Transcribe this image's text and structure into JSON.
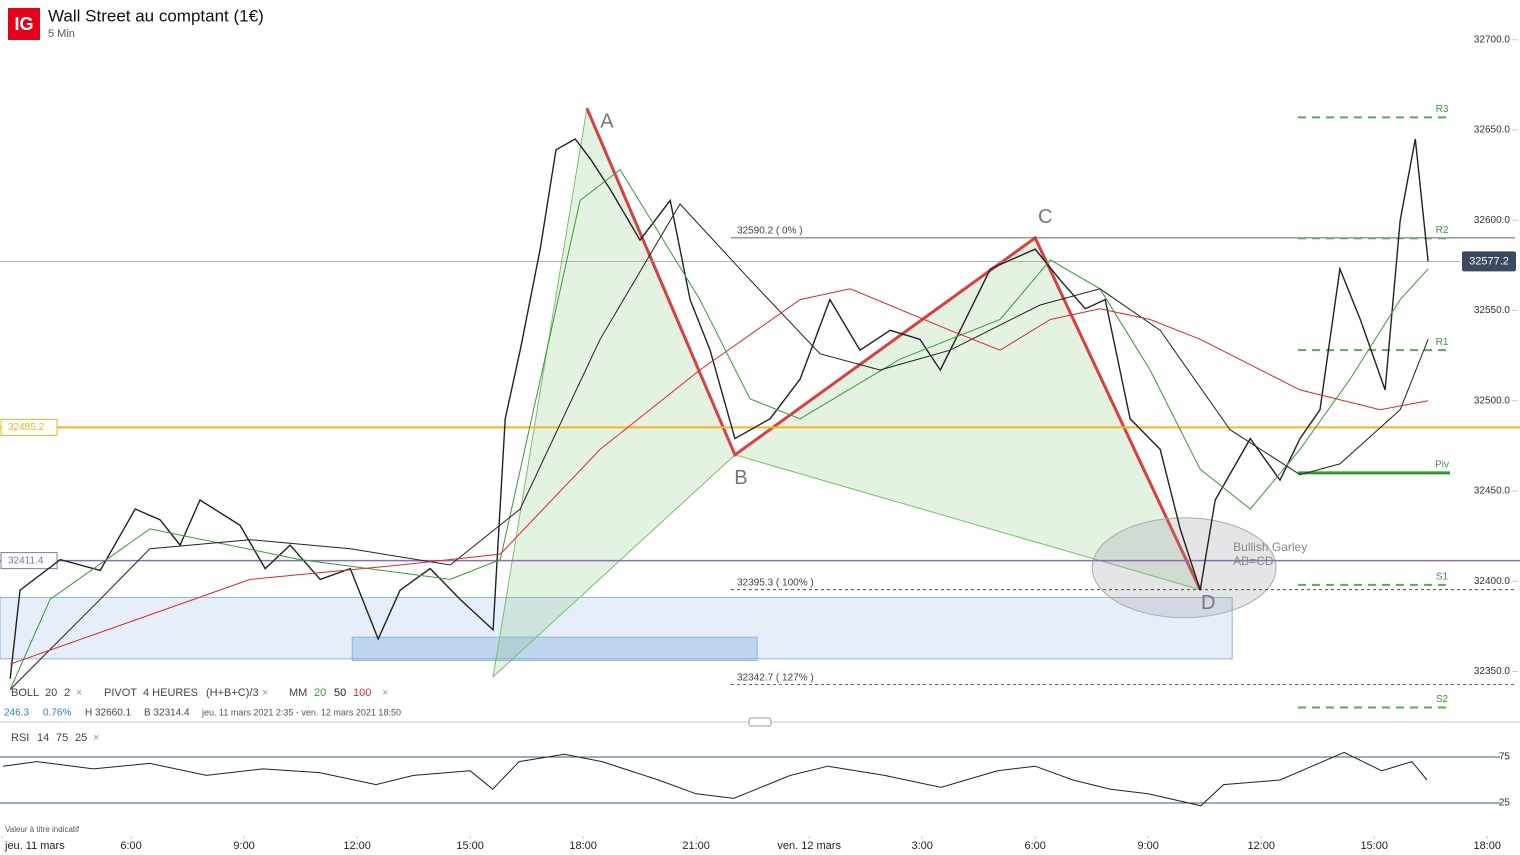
{
  "header": {
    "logo": "IG"
  },
  "chart_data": {
    "type": "line",
    "title": "Wall Street au comptant (1€)",
    "subtitle": "5 Min",
    "xlim": [
      2.52,
      42.87
    ],
    "xticks": [
      {
        "value": 2.58,
        "label": "jeu. 11 mars"
      },
      {
        "value": 6,
        "label": "6:00"
      },
      {
        "value": 9,
        "label": "9:00"
      },
      {
        "value": 12,
        "label": "12:00"
      },
      {
        "value": 15,
        "label": "15:00"
      },
      {
        "value": 18,
        "label": "18:00"
      },
      {
        "value": 21,
        "label": "21:00"
      },
      {
        "value": 24,
        "label": "ven. 12 mars"
      },
      {
        "value": 27,
        "label": "3:00"
      },
      {
        "value": 30,
        "label": "6:00"
      },
      {
        "value": 33,
        "label": "9:00"
      },
      {
        "value": 36,
        "label": "12:00"
      },
      {
        "value": 39,
        "label": "15:00"
      },
      {
        "value": 42,
        "label": "18:00"
      }
    ],
    "ylim": [
      32322,
      32722
    ],
    "yticks": [
      {
        "value": 32700,
        "label": "32700.0"
      },
      {
        "value": 32650,
        "label": "32650.0"
      },
      {
        "value": 32600,
        "label": "32600.0"
      },
      {
        "value": 32550,
        "label": "32550.0"
      },
      {
        "value": 32500,
        "label": "32500.0"
      },
      {
        "value": 32450,
        "label": "32450.0"
      },
      {
        "value": 32400,
        "label": "32400.0"
      },
      {
        "value": 32350,
        "label": "32350.0"
      }
    ],
    "series": [
      {
        "color": "#222222",
        "x": [
          2.79,
          3.05,
          4.12,
          5.18,
          6.11,
          6.77,
          7.3,
          7.83,
          8.89,
          9.56,
          10.22,
          11.02,
          11.82,
          12.56,
          13.14,
          13.94,
          14.73,
          15.61,
          15.93,
          16.33,
          16.86,
          17.28,
          17.79,
          18.19,
          18.72,
          19.51,
          20.31,
          20.84,
          21.37,
          22.03,
          22.96,
          23.76,
          24.55,
          25.35,
          26.15,
          26.94,
          27.48,
          28.01,
          28.81,
          30.0,
          30.66,
          31.33,
          31.86,
          32.52,
          33.32,
          33.85,
          34.38,
          34.78,
          35.71,
          36.5,
          37.03,
          37.56,
          38.09,
          38.63,
          39.29,
          39.69,
          40.09,
          40.43
        ],
        "values": [
          32346,
          32395,
          32412,
          32406,
          32440,
          32434,
          32420,
          32445,
          32431,
          32407,
          32420,
          32401,
          32407,
          32368,
          32395,
          32407,
          32390,
          32373,
          32490,
          32528,
          32584,
          32639,
          32645,
          32634,
          32617,
          32589,
          32611,
          32556,
          32528,
          32479,
          32490,
          32512,
          32556,
          32528,
          32539,
          32534,
          32517,
          32539,
          32573,
          32584,
          32567,
          32551,
          32556,
          32490,
          32473,
          32429,
          32395,
          32445,
          32479,
          32456,
          32479,
          32495,
          32573,
          32545,
          32506,
          32600,
          32645,
          32577.2
        ]
      },
      {
        "name": "20",
        "color": "#3a9a3a",
        "x": [
          2.79,
          3.85,
          6.5,
          10.49,
          14.47,
          15.8,
          17.92,
          18.98,
          21.1,
          22.43,
          23.76,
          26.41,
          29.07,
          30.4,
          31.72,
          33.05,
          34.38,
          35.71,
          37.03,
          38.36,
          39.69,
          40.43
        ],
        "values": [
          32340,
          32390,
          32429,
          32412,
          32401,
          32412,
          32611,
          32628,
          32556,
          32501,
          32490,
          32523,
          32545,
          32578,
          32562,
          32517,
          32462,
          32440,
          32473,
          32512,
          32556,
          32573
        ]
      },
      {
        "name": "50",
        "color": "#222222",
        "x": [
          2.79,
          5.18,
          6.5,
          9.16,
          11.82,
          14.47,
          16.33,
          18.45,
          20.57,
          22.43,
          24.29,
          25.88,
          27.74,
          30.13,
          31.72,
          33.32,
          35.17,
          37.03,
          38.09,
          39.69,
          40.43
        ],
        "values": [
          32340,
          32390,
          32418,
          32423,
          32418,
          32409,
          32440,
          32534,
          32609,
          32567,
          32526,
          32517,
          32528,
          32553,
          32562,
          32539,
          32484,
          32459,
          32465,
          32495,
          32534
        ]
      },
      {
        "name": "100",
        "color": "#d92b2b",
        "x": [
          2.79,
          9.16,
          13.14,
          15.8,
          18.45,
          21.1,
          23.76,
          25.09,
          27.74,
          29.07,
          30.4,
          31.72,
          33.05,
          34.38,
          37.03,
          39.16,
          40.43
        ],
        "values": [
          32354,
          32401,
          32409,
          32415,
          32473,
          32517,
          32556,
          32562,
          32539,
          32528,
          32545,
          32551,
          32545,
          32534,
          32506,
          32495,
          32500
        ]
      }
    ],
    "zones": [
      {
        "x": [
          2.52,
          35.23
        ],
        "y": [
          32357,
          32391
        ]
      },
      {
        "x": [
          11.87,
          22.62
        ],
        "y": [
          32356,
          32369
        ]
      }
    ],
    "pattern": {
      "points": [
        {
          "label": null,
          "x": 15.61,
          "y": 32347
        },
        {
          "label": "A",
          "x": 18.1,
          "y": 32662
        },
        {
          "label": "B",
          "x": 22.03,
          "y": 32470
        },
        {
          "label": "C",
          "x": 30.0,
          "y": 32590.2
        },
        {
          "label": "D",
          "x": 34.38,
          "y": 32395.3
        }
      ],
      "annotation": [
        "Bullish Garley",
        "AB=CD"
      ]
    },
    "fib_levels": [
      {
        "label": "32590.2 ( 0% )",
        "value": 32590.2
      },
      {
        "label": "32395.3 ( 100% )",
        "value": 32395.3
      },
      {
        "label": "32342.7 ( 127% )",
        "value": 32342.7
      }
    ],
    "pivots": [
      {
        "label": "R3",
        "value": 32657
      },
      {
        "label": "R2",
        "value": 32590
      },
      {
        "label": "R1",
        "value": 32528
      },
      {
        "label": "Piv",
        "value": 32460
      },
      {
        "label": "S1",
        "value": 32398
      },
      {
        "label": "S2",
        "value": 32330
      }
    ],
    "price_lines": [
      {
        "value": 32485.2,
        "color": "#f5b324"
      },
      {
        "value": 32411.4,
        "color": "#8a6fb0"
      }
    ],
    "current_price": 32577.2,
    "rsi": {
      "ylim": [
        12,
        88
      ],
      "yticks": [
        75,
        25
      ],
      "x": [
        2.6,
        3.5,
        5,
        6.5,
        8,
        9.5,
        11,
        12.5,
        13.5,
        15,
        15.6,
        16.3,
        17.5,
        18.5,
        20,
        21,
        22,
        23.5,
        24.5,
        26,
        27.5,
        29,
        30,
        31,
        32,
        33,
        34.4,
        35,
        36.5,
        38.2,
        39.2,
        40,
        40.4
      ],
      "values": [
        65,
        70,
        62,
        68,
        55,
        62,
        58,
        45,
        55,
        60,
        40,
        70,
        78,
        70,
        50,
        35,
        30,
        55,
        65,
        55,
        42,
        60,
        65,
        50,
        40,
        35,
        22,
        45,
        50,
        80,
        60,
        70,
        50
      ]
    }
  },
  "indicators": {
    "boll": [
      "BOLL",
      20,
      2
    ],
    "pivot": [
      "PIVOT",
      "4 HEURES",
      "(H+B+C)/3"
    ],
    "mm": "MM",
    "rsi": [
      "RSI",
      14,
      75,
      25
    ],
    "stats": [
      "246.3",
      "0.76%",
      "H 32660.1",
      "B 32314.4",
      "jeu. 11 mars 2021 2:35 - ven. 12 mars 2021 18:50"
    ]
  },
  "footer": {
    "note": "Valeur à titre indicatif"
  }
}
